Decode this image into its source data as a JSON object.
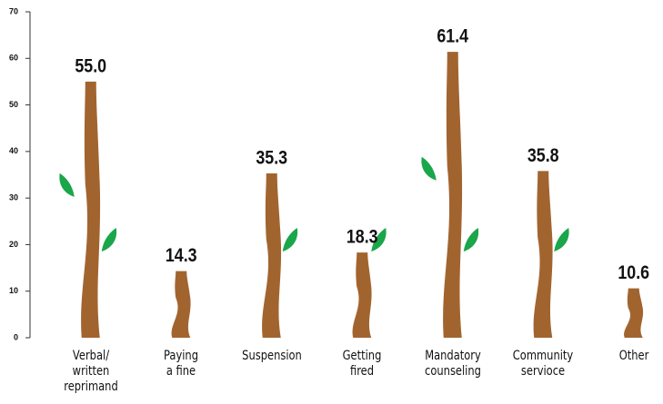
{
  "chart_data": {
    "type": "bar",
    "categories": [
      "Verbal/\nwritten\nreprimand",
      "Paying\na fine",
      "Suspension",
      "Getting\nfired",
      "Mandatory\ncounseling",
      "Community\nservioce",
      "Other"
    ],
    "values": [
      55.0,
      14.3,
      35.3,
      18.3,
      61.4,
      35.8,
      10.6
    ],
    "value_labels": [
      "55.0",
      "14.3",
      "35.3",
      "18.3",
      "61.4",
      "35.8",
      "10.6"
    ],
    "color": "#a2642f",
    "ylim": [
      0,
      70
    ],
    "yticks": [
      0,
      10,
      20,
      30,
      40,
      50,
      60,
      70
    ]
  }
}
